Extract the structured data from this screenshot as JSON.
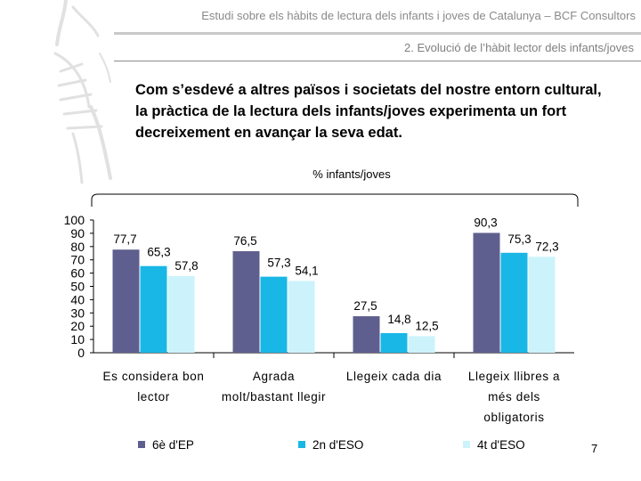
{
  "header": {
    "title": "Estudi sobre els hàbits de lectura dels infants i joves de Catalunya – BCF Consultors",
    "section": "2. Evolució de l’hàbit lector dels infants/joves"
  },
  "headline": "Com s’esdevé a altres països i societats del nostre entorn cultural, la pràctica de la lectura dels infants/joves experimenta un fort decreixement en avançar la seva edat.",
  "page_number": "7",
  "colors": {
    "series_1": "#5f5f8f",
    "series_2": "#19b7e6",
    "series_3": "#ccf3fb"
  },
  "chart_data": {
    "type": "bar",
    "unit_label": "% infants/joves",
    "categories": [
      [
        "Es considera bon",
        "lector"
      ],
      [
        "Agrada",
        "molt/bastant llegir"
      ],
      [
        "Llegeix cada dia"
      ],
      [
        "Llegeix llibres a",
        "més dels",
        "obligatoris"
      ]
    ],
    "series": [
      {
        "name": "6è d'EP",
        "values": [
          77.7,
          76.5,
          27.5,
          90.3
        ],
        "labels": [
          "77,7",
          "76,5",
          "27,5",
          "90,3"
        ]
      },
      {
        "name": "2n d'ESO",
        "values": [
          65.3,
          57.3,
          14.8,
          75.3
        ],
        "labels": [
          "65,3",
          "57,3",
          "14,8",
          "75,3"
        ]
      },
      {
        "name": "4t d'ESO",
        "values": [
          57.8,
          54.1,
          12.5,
          72.3
        ],
        "labels": [
          "57,8",
          "54,1",
          "12,5",
          "72,3"
        ]
      }
    ],
    "y_ticks": [
      100,
      90,
      80,
      70,
      60,
      50,
      40,
      30,
      20,
      10,
      0
    ],
    "ylim": [
      0,
      100
    ],
    "grid": false,
    "legend": "bottom"
  }
}
